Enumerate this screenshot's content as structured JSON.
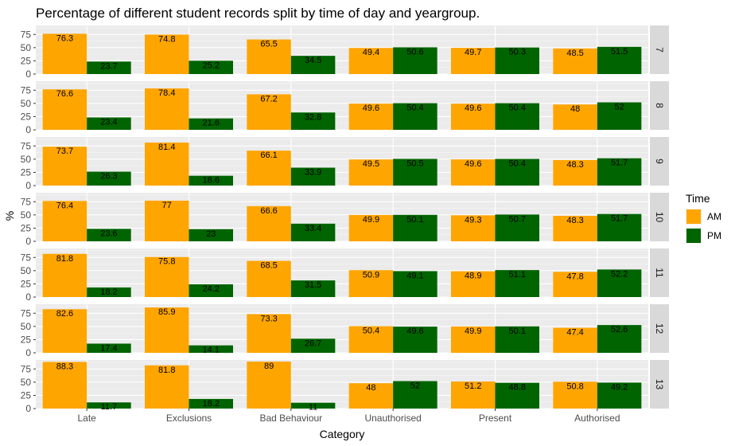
{
  "chart_data": {
    "type": "bar",
    "title": "Percentage of different student records split by time of day and yeargroup.",
    "xlabel": "Category",
    "ylabel": "%",
    "categories": [
      "Late",
      "Exclusions",
      "Bad Behaviour",
      "Unauthorised",
      "Present",
      "Authorised"
    ],
    "yticks": [
      "0",
      "25",
      "50",
      "75"
    ],
    "ylim": [
      0,
      92
    ],
    "legend": {
      "title": "Time",
      "position": "right",
      "entries": [
        {
          "label": "AM",
          "color": "#FFA500"
        },
        {
          "label": "PM",
          "color": "#006400"
        }
      ]
    },
    "facets": [
      {
        "label": "7",
        "AM": [
          76.3,
          74.8,
          65.5,
          49.4,
          49.7,
          48.5
        ],
        "PM": [
          23.7,
          25.2,
          34.5,
          50.6,
          50.3,
          51.5
        ]
      },
      {
        "label": "8",
        "AM": [
          76.6,
          78.4,
          67.2,
          49.6,
          49.6,
          48
        ],
        "PM": [
          23.4,
          21.6,
          32.8,
          50.4,
          50.4,
          52
        ]
      },
      {
        "label": "9",
        "AM": [
          73.7,
          81.4,
          66.1,
          49.5,
          49.6,
          48.3
        ],
        "PM": [
          26.3,
          18.6,
          33.9,
          50.5,
          50.4,
          51.7
        ]
      },
      {
        "label": "10",
        "AM": [
          76.4,
          77,
          66.6,
          49.9,
          49.3,
          48.3
        ],
        "PM": [
          23.6,
          23,
          33.4,
          50.1,
          50.7,
          51.7
        ]
      },
      {
        "label": "11",
        "AM": [
          81.8,
          75.8,
          68.5,
          50.9,
          48.9,
          47.8
        ],
        "PM": [
          18.2,
          24.2,
          31.5,
          49.1,
          51.1,
          52.2
        ]
      },
      {
        "label": "12",
        "AM": [
          82.6,
          85.9,
          73.3,
          50.4,
          49.9,
          47.4
        ],
        "PM": [
          17.4,
          14.1,
          26.7,
          49.6,
          50.1,
          52.6
        ]
      },
      {
        "label": "13",
        "AM": [
          88.3,
          81.8,
          89,
          48,
          51.2,
          50.8
        ],
        "PM": [
          11.7,
          18.2,
          11,
          52,
          48.8,
          49.2
        ]
      }
    ],
    "grid": true
  }
}
